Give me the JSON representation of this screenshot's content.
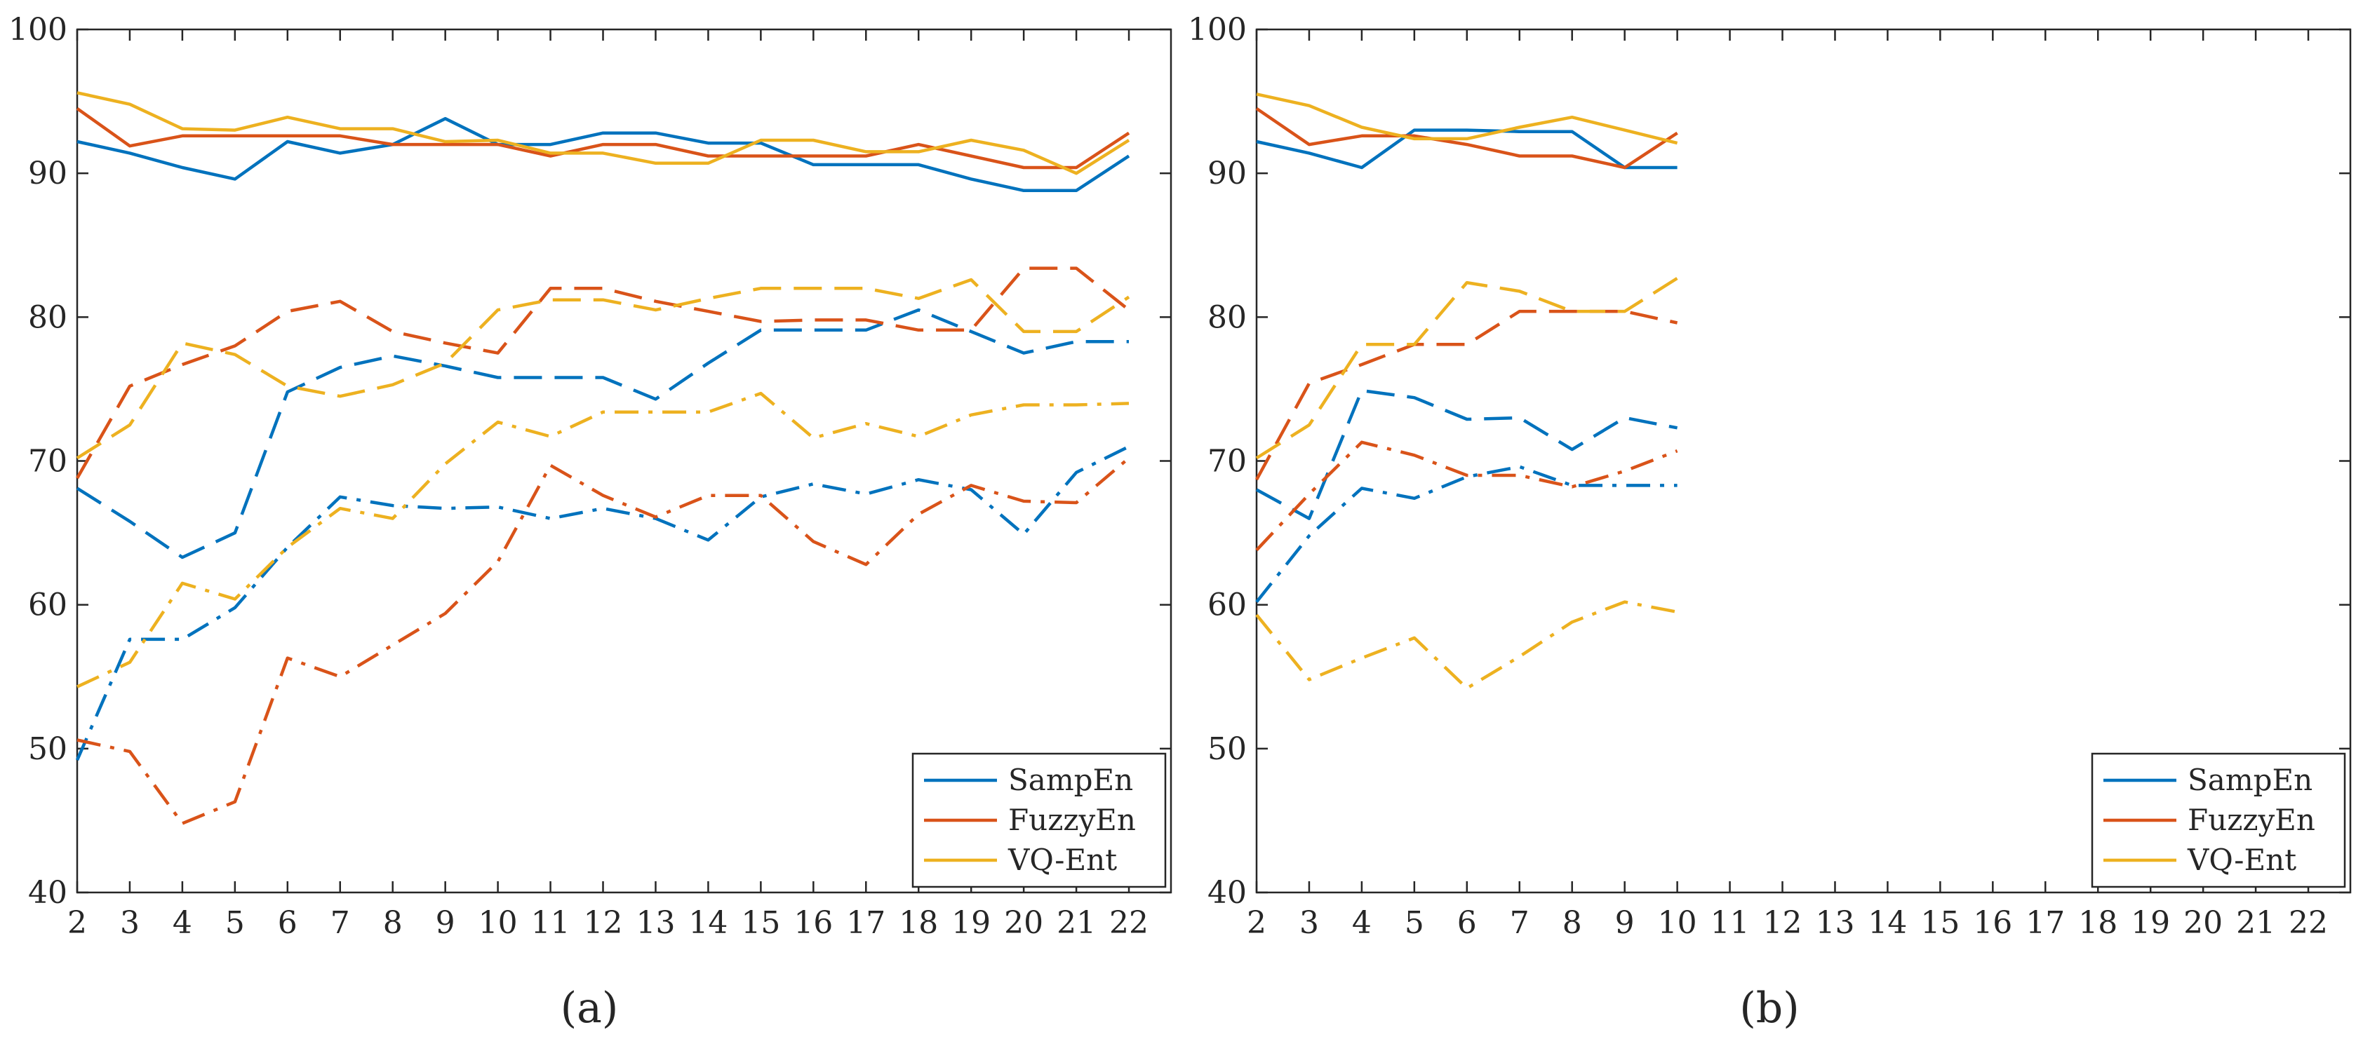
{
  "colors": {
    "SampEn": "#0072BD",
    "FuzzyEn": "#D95319",
    "VQ-Ent": "#EDB120",
    "axis": "#262626"
  },
  "chart_data": [
    {
      "type": "line",
      "caption": "(a)",
      "x_ticks": [
        2,
        3,
        4,
        5,
        6,
        7,
        8,
        9,
        10,
        11,
        12,
        13,
        14,
        15,
        16,
        17,
        18,
        19,
        20,
        21,
        22
      ],
      "y_ticks": [
        40,
        50,
        60,
        70,
        80,
        90,
        100
      ],
      "xlim": [
        2,
        22.8
      ],
      "ylim": [
        40,
        100
      ],
      "legend": {
        "position": "bottom-right",
        "entries": [
          "SampEn",
          "FuzzyEn",
          "VQ-Ent"
        ]
      },
      "series": [
        {
          "name": "SampEn",
          "style": "solid",
          "x": [
            2,
            3,
            4,
            5,
            6,
            7,
            8,
            9,
            10,
            11,
            12,
            13,
            14,
            15,
            16,
            17,
            18,
            19,
            20,
            21,
            22
          ],
          "values": [
            92.2,
            91.4,
            90.4,
            89.6,
            92.2,
            91.4,
            92.0,
            93.8,
            92.0,
            92.0,
            92.8,
            92.8,
            92.1,
            92.1,
            90.6,
            90.6,
            90.6,
            89.6,
            88.8,
            88.8,
            91.2
          ]
        },
        {
          "name": "FuzzyEn",
          "style": "solid",
          "x": [
            2,
            3,
            4,
            5,
            6,
            7,
            8,
            9,
            10,
            11,
            12,
            13,
            14,
            15,
            16,
            17,
            18,
            19,
            20,
            21,
            22
          ],
          "values": [
            94.5,
            91.9,
            92.6,
            92.6,
            92.6,
            92.6,
            92.0,
            92.0,
            92.0,
            91.2,
            92.0,
            92.0,
            91.2,
            91.2,
            91.2,
            91.2,
            92.0,
            91.2,
            90.4,
            90.4,
            92.8
          ]
        },
        {
          "name": "VQ-Ent",
          "style": "solid",
          "x": [
            2,
            3,
            4,
            5,
            6,
            7,
            8,
            9,
            10,
            11,
            12,
            13,
            14,
            15,
            16,
            17,
            18,
            19,
            20,
            21,
            22
          ],
          "values": [
            95.6,
            94.8,
            93.1,
            93.0,
            93.9,
            93.1,
            93.1,
            92.2,
            92.3,
            91.4,
            91.4,
            90.7,
            90.7,
            92.3,
            92.3,
            91.5,
            91.5,
            92.3,
            91.6,
            90.0,
            92.3
          ]
        },
        {
          "name": "SampEn",
          "style": "dashed",
          "x": [
            2,
            3,
            4,
            5,
            6,
            7,
            8,
            9,
            10,
            11,
            12,
            13,
            14,
            15,
            16,
            17,
            18,
            19,
            20,
            21,
            22
          ],
          "values": [
            68.1,
            65.8,
            63.3,
            65.0,
            74.8,
            76.5,
            77.3,
            76.6,
            75.8,
            75.8,
            75.8,
            74.3,
            76.8,
            79.1,
            79.1,
            79.1,
            80.5,
            79.0,
            77.5,
            78.3,
            78.3
          ]
        },
        {
          "name": "FuzzyEn",
          "style": "dashed",
          "x": [
            2,
            3,
            4,
            5,
            6,
            7,
            8,
            9,
            10,
            11,
            12,
            13,
            14,
            15,
            16,
            17,
            18,
            19,
            20,
            21,
            22
          ],
          "values": [
            68.8,
            75.2,
            76.7,
            78.0,
            80.4,
            81.1,
            79.0,
            78.2,
            77.5,
            82.0,
            82.0,
            81.1,
            80.4,
            79.7,
            79.8,
            79.8,
            79.1,
            79.1,
            83.4,
            83.4,
            80.5
          ]
        },
        {
          "name": "VQ-Ent",
          "style": "dashed",
          "x": [
            2,
            3,
            4,
            5,
            6,
            7,
            8,
            9,
            10,
            11,
            12,
            13,
            14,
            15,
            16,
            17,
            18,
            19,
            20,
            21,
            22
          ],
          "values": [
            70.2,
            72.5,
            78.2,
            77.4,
            75.2,
            74.5,
            75.3,
            76.8,
            80.5,
            81.2,
            81.2,
            80.5,
            81.3,
            82.0,
            82.0,
            82.0,
            81.3,
            82.6,
            79.0,
            79.0,
            81.4
          ]
        },
        {
          "name": "SampEn",
          "style": "dashdot",
          "x": [
            2,
            3,
            4,
            5,
            6,
            7,
            8,
            9,
            10,
            11,
            12,
            13,
            14,
            15,
            16,
            17,
            18,
            19,
            20,
            21,
            22
          ],
          "values": [
            49.2,
            57.6,
            57.6,
            59.8,
            64.0,
            67.5,
            66.9,
            66.7,
            66.8,
            66.0,
            66.7,
            66.0,
            64.5,
            67.5,
            68.4,
            67.7,
            68.7,
            68.0,
            64.9,
            69.2,
            71.0
          ]
        },
        {
          "name": "FuzzyEn",
          "style": "dashdot",
          "x": [
            2,
            3,
            4,
            5,
            6,
            7,
            8,
            9,
            10,
            11,
            12,
            13,
            14,
            15,
            16,
            17,
            18,
            19,
            20,
            21,
            22
          ],
          "values": [
            50.6,
            49.8,
            44.8,
            46.3,
            56.3,
            55.0,
            57.2,
            59.4,
            63.0,
            69.7,
            67.6,
            66.1,
            67.6,
            67.6,
            64.4,
            62.8,
            66.3,
            68.3,
            67.2,
            67.1,
            70.2
          ]
        },
        {
          "name": "VQ-Ent",
          "style": "dashdot",
          "x": [
            2,
            3,
            4,
            5,
            6,
            7,
            8,
            9,
            10,
            11,
            12,
            13,
            14,
            15,
            16,
            17,
            18,
            19,
            20,
            21,
            22
          ],
          "values": [
            54.3,
            56.0,
            61.5,
            60.4,
            64.0,
            66.7,
            66.0,
            69.8,
            72.7,
            71.7,
            73.4,
            73.4,
            73.4,
            74.7,
            71.6,
            72.6,
            71.7,
            73.2,
            73.9,
            73.9,
            74.0
          ]
        }
      ]
    },
    {
      "type": "line",
      "caption": "(b)",
      "x_ticks": [
        2,
        3,
        4,
        5,
        6,
        7,
        8,
        9,
        10,
        11,
        12,
        13,
        14,
        15,
        16,
        17,
        18,
        19,
        20,
        21,
        22
      ],
      "y_ticks": [
        40,
        50,
        60,
        70,
        80,
        90,
        100
      ],
      "xlim": [
        2,
        22.8
      ],
      "ylim": [
        40,
        100
      ],
      "legend": {
        "position": "bottom-right",
        "entries": [
          "SampEn",
          "FuzzyEn",
          "VQ-Ent"
        ]
      },
      "series": [
        {
          "name": "SampEn",
          "style": "solid",
          "x": [
            2,
            3,
            4,
            5,
            6,
            7,
            8,
            9,
            10
          ],
          "values": [
            92.2,
            91.4,
            90.4,
            93.0,
            93.0,
            92.9,
            92.9,
            90.4,
            90.4
          ]
        },
        {
          "name": "FuzzyEn",
          "style": "solid",
          "x": [
            2,
            3,
            4,
            5,
            6,
            7,
            8,
            9,
            10
          ],
          "values": [
            94.5,
            92.0,
            92.6,
            92.6,
            92.0,
            91.2,
            91.2,
            90.4,
            92.8
          ]
        },
        {
          "name": "VQ-Ent",
          "style": "solid",
          "x": [
            2,
            3,
            4,
            5,
            6,
            7,
            8,
            9,
            10
          ],
          "values": [
            95.5,
            94.7,
            93.2,
            92.4,
            92.4,
            93.2,
            93.9,
            93.0,
            92.1
          ]
        },
        {
          "name": "SampEn",
          "style": "dashed",
          "x": [
            2,
            3,
            4,
            5,
            6,
            7,
            8,
            9,
            10
          ],
          "values": [
            68.0,
            66.0,
            74.9,
            74.4,
            72.9,
            73.0,
            70.8,
            73.0,
            72.3
          ]
        },
        {
          "name": "FuzzyEn",
          "style": "dashed",
          "x": [
            2,
            3,
            4,
            5,
            6,
            7,
            8,
            9,
            10
          ],
          "values": [
            68.7,
            75.4,
            76.7,
            78.1,
            78.1,
            80.4,
            80.4,
            80.4,
            79.6
          ]
        },
        {
          "name": "VQ-Ent",
          "style": "dashed",
          "x": [
            2,
            3,
            4,
            5,
            6,
            7,
            8,
            9,
            10
          ],
          "values": [
            70.2,
            72.5,
            78.1,
            78.1,
            82.4,
            81.8,
            80.4,
            80.4,
            82.7
          ]
        },
        {
          "name": "SampEn",
          "style": "dashdot",
          "x": [
            2,
            3,
            4,
            5,
            6,
            7,
            8,
            9,
            10
          ],
          "values": [
            60.2,
            64.8,
            68.1,
            67.4,
            68.9,
            69.6,
            68.3,
            68.3,
            68.3
          ]
        },
        {
          "name": "FuzzyEn",
          "style": "dashdot",
          "x": [
            2,
            3,
            4,
            5,
            6,
            7,
            8,
            9,
            10
          ],
          "values": [
            63.8,
            67.7,
            71.3,
            70.4,
            69.0,
            69.0,
            68.2,
            69.3,
            70.7
          ]
        },
        {
          "name": "VQ-Ent",
          "style": "dashdot",
          "x": [
            2,
            3,
            4,
            5,
            6,
            7,
            8,
            9,
            10
          ],
          "values": [
            59.3,
            54.8,
            56.3,
            57.7,
            54.2,
            56.4,
            58.8,
            60.2,
            59.5
          ]
        }
      ]
    }
  ]
}
